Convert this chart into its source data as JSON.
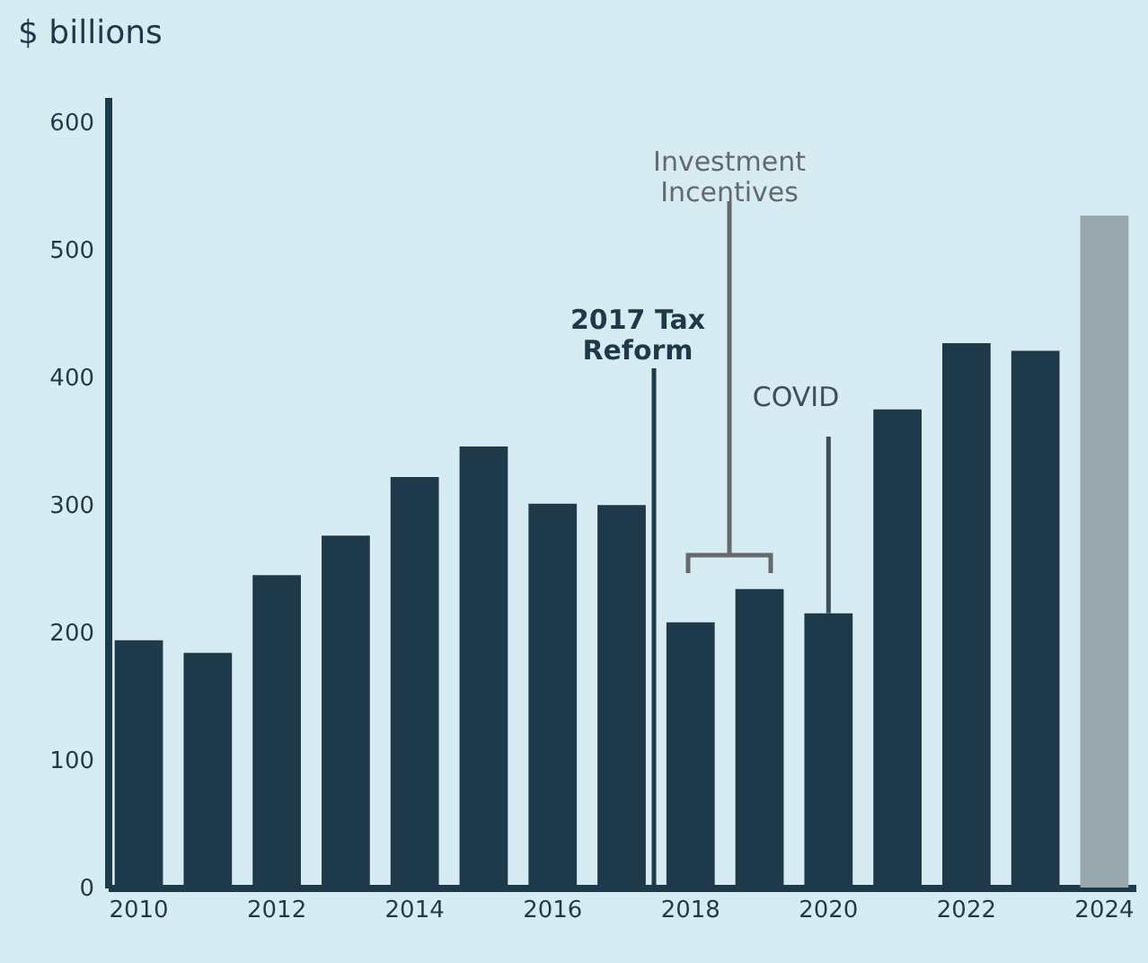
{
  "chart_data": {
    "type": "bar",
    "title": "$ billions",
    "categories": [
      "2010",
      null,
      "2012",
      null,
      "2014",
      null,
      "2016",
      null,
      "2018",
      null,
      "2020",
      null,
      "2022",
      null,
      "2024"
    ],
    "values": [
      194,
      184,
      245,
      276,
      322,
      346,
      301,
      300,
      208,
      234,
      215,
      375,
      427,
      421,
      527
    ],
    "colors": [
      "#1e3a4a",
      "#1e3a4a",
      "#1e3a4a",
      "#1e3a4a",
      "#1e3a4a",
      "#1e3a4a",
      "#1e3a4a",
      "#1e3a4a",
      "#1e3a4a",
      "#1e3a4a",
      "#1e3a4a",
      "#1e3a4a",
      "#1e3a4a",
      "#1e3a4a",
      "#9aa7ad"
    ],
    "ylim": [
      0,
      620
    ],
    "yticks": [
      0,
      100,
      200,
      300,
      400,
      500,
      600
    ],
    "grid": false,
    "annotations": [
      "2017 Tax\nReform",
      "Investment\nIncentives",
      {
        "text": "COVID",
        "x": "2020",
        "y": 215
      }
    ]
  }
}
